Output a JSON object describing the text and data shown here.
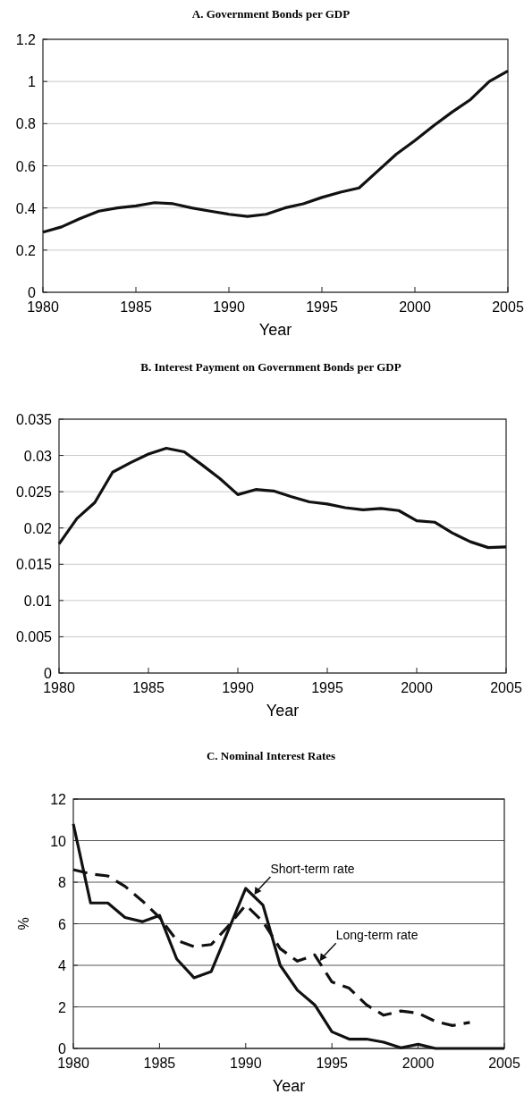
{
  "chart_data": [
    {
      "type": "line",
      "title": "A. Government Bonds per GDP",
      "xlabel": "Year",
      "x": [
        1980,
        1981,
        1982,
        1983,
        1984,
        1985,
        1986,
        1987,
        1988,
        1989,
        1990,
        1991,
        1992,
        1993,
        1994,
        1995,
        1996,
        1997,
        1998,
        1999,
        2000,
        2001,
        2002,
        2003,
        2004,
        2005
      ],
      "series": [
        {
          "color": "#111111",
          "values": [
            0.285,
            0.31,
            0.35,
            0.385,
            0.4,
            0.41,
            0.425,
            0.42,
            0.4,
            0.385,
            0.37,
            0.36,
            0.37,
            0.4,
            0.42,
            0.45,
            0.475,
            0.495,
            0.575,
            0.655,
            0.72,
            0.79,
            0.855,
            0.915,
            1.0,
            1.05
          ]
        }
      ],
      "xlim": [
        1980,
        2005
      ],
      "xticks": [
        1980,
        1985,
        1990,
        1995,
        2000,
        2005
      ],
      "ylim": [
        0,
        1.2
      ],
      "yticks": [
        0,
        0.2,
        0.4,
        0.6,
        0.8,
        1,
        1.2
      ],
      "grid": "y",
      "line_style": "solid",
      "marker": "none"
    },
    {
      "type": "line",
      "title": "B. Interest Payment on Government Bonds per GDP",
      "xlabel": "Year",
      "x": [
        1980,
        1981,
        1982,
        1983,
        1984,
        1985,
        1986,
        1987,
        1988,
        1989,
        1990,
        1991,
        1992,
        1993,
        1994,
        1995,
        1996,
        1997,
        1998,
        1999,
        2000,
        2001,
        2002,
        2003,
        2004,
        2005
      ],
      "series": [
        {
          "color": "#111111",
          "values": [
            0.0178,
            0.0213,
            0.0235,
            0.0277,
            0.029,
            0.0302,
            0.031,
            0.0305,
            0.0287,
            0.0268,
            0.0246,
            0.0253,
            0.0251,
            0.0243,
            0.0236,
            0.0233,
            0.0228,
            0.0225,
            0.0227,
            0.0224,
            0.021,
            0.0208,
            0.0193,
            0.0181,
            0.0173,
            0.0174
          ]
        }
      ],
      "xlim": [
        1980,
        2005
      ],
      "xticks": [
        1980,
        1985,
        1990,
        1995,
        2000,
        2005
      ],
      "ylim": [
        0,
        0.035
      ],
      "yticks": [
        0,
        0.005,
        0.01,
        0.015,
        0.02,
        0.025,
        0.03,
        0.035
      ],
      "grid": "y",
      "line_style": "solid",
      "marker": "none"
    },
    {
      "type": "line",
      "title": "C. Nominal Interest Rates",
      "xlabel": "Year",
      "ylabel": "%",
      "x": [
        1980,
        1981,
        1982,
        1983,
        1984,
        1985,
        1986,
        1987,
        1988,
        1989,
        1990,
        1991,
        1992,
        1993,
        1994,
        1995,
        1996,
        1997,
        1998,
        1999,
        2000,
        2001,
        2002,
        2003,
        2004,
        2005
      ],
      "series": [
        {
          "color": "#111111",
          "line_style": "solid",
          "values": [
            10.8,
            7.0,
            7.0,
            6.3,
            6.1,
            6.4,
            4.3,
            3.4,
            3.7,
            5.7,
            7.7,
            6.9,
            4.0,
            2.8,
            2.1,
            0.8,
            0.45,
            0.45,
            0.3,
            0.03,
            0.2,
            0,
            0,
            0,
            0,
            0
          ]
        },
        {
          "color": "#111111",
          "line_style": "dashed",
          "values": [
            8.6,
            8.4,
            8.3,
            7.8,
            7.1,
            6.3,
            5.2,
            4.9,
            5.0,
            5.9,
            6.9,
            6.1,
            4.8,
            4.2,
            4.5,
            3.2,
            2.9,
            2.1,
            1.6,
            1.8,
            1.7,
            1.3,
            1.1,
            1.25,
            null,
            null
          ]
        }
      ],
      "annotations": [
        {
          "text": "Short-term rate",
          "x": 1990.5,
          "y": 7.4
        },
        {
          "text": "Long-term rate",
          "x": 1994.3,
          "y": 4.2
        }
      ],
      "xlim": [
        1980,
        2005
      ],
      "xticks": [
        1980,
        1985,
        1990,
        1995,
        2000,
        2005
      ],
      "ylim": [
        0,
        12
      ],
      "yticks": [
        0,
        2,
        4,
        6,
        8,
        10,
        12
      ],
      "grid": "y",
      "marker": "none"
    }
  ]
}
